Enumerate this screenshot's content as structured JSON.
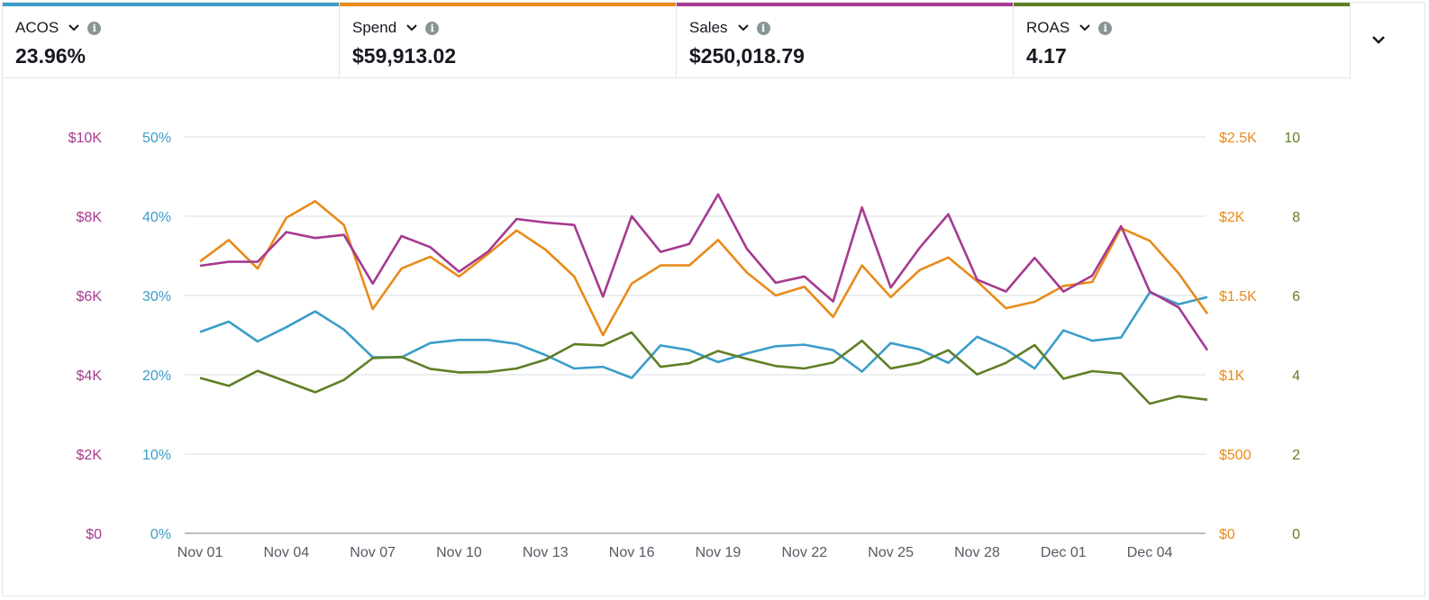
{
  "metrics": [
    {
      "label": "ACOS",
      "value": "23.96%",
      "color": "#3b9dc9"
    },
    {
      "label": "Spend",
      "value": "$59,913.02",
      "color": "#e88b1a"
    },
    {
      "label": "Sales",
      "value": "$250,018.79",
      "color": "#a63a90"
    },
    {
      "label": "ROAS",
      "value": "4.17",
      "color": "#5f7f25"
    }
  ],
  "chart_data": {
    "type": "line",
    "x": [
      "Nov 01",
      "Nov 02",
      "Nov 03",
      "Nov 04",
      "Nov 05",
      "Nov 06",
      "Nov 07",
      "Nov 08",
      "Nov 09",
      "Nov 10",
      "Nov 11",
      "Nov 12",
      "Nov 13",
      "Nov 14",
      "Nov 15",
      "Nov 16",
      "Nov 17",
      "Nov 18",
      "Nov 19",
      "Nov 20",
      "Nov 21",
      "Nov 22",
      "Nov 23",
      "Nov 24",
      "Nov 25",
      "Nov 26",
      "Nov 27",
      "Nov 28",
      "Nov 29",
      "Nov 30",
      "Dec 01",
      "Dec 02",
      "Dec 03",
      "Dec 04",
      "Dec 05",
      "Dec 06"
    ],
    "x_tick_labels": [
      "Nov 01",
      "Nov 04",
      "Nov 07",
      "Nov 10",
      "Nov 13",
      "Nov 16",
      "Nov 19",
      "Nov 22",
      "Nov 25",
      "Nov 28",
      "Dec 01",
      "Dec 04"
    ],
    "grid": true,
    "axes": {
      "sales": {
        "side": "left-outer",
        "range": [
          0,
          10000
        ],
        "ticks": [
          "$0",
          "$2K",
          "$4K",
          "$6K",
          "$8K",
          "$10K"
        ],
        "color": "#a63a90"
      },
      "acos": {
        "side": "left-inner",
        "range": [
          0,
          50
        ],
        "ticks": [
          "0%",
          "10%",
          "20%",
          "30%",
          "40%",
          "50%"
        ],
        "color": "#3b9dc9"
      },
      "spend": {
        "side": "right-inner",
        "range": [
          0,
          2500
        ],
        "ticks": [
          "$0",
          "$500",
          "$1K",
          "$1.5K",
          "$2K",
          "$2.5K"
        ],
        "color": "#e88b1a"
      },
      "roas": {
        "side": "right-outer",
        "range": [
          0,
          10
        ],
        "ticks": [
          "0",
          "2",
          "4",
          "6",
          "8",
          "10"
        ],
        "color": "#5f7f25"
      }
    },
    "series": [
      {
        "name": "ACOS",
        "axis": "acos",
        "color": "#3b9dc9",
        "values": [
          25.4,
          26.7,
          24.2,
          26.0,
          28.0,
          25.7,
          22.2,
          22.2,
          24.0,
          24.4,
          24.4,
          23.9,
          22.5,
          20.8,
          21.0,
          19.6,
          23.7,
          23.1,
          21.6,
          22.7,
          23.6,
          23.8,
          23.1,
          20.4,
          24.0,
          23.2,
          21.5,
          24.8,
          23.2,
          20.8,
          25.6,
          24.3,
          24.7,
          30.4,
          28.9,
          29.8
        ]
      },
      {
        "name": "Spend",
        "axis": "spend",
        "color": "#e88b1a",
        "values": [
          1715,
          1850,
          1670,
          1990,
          2095,
          1945,
          1415,
          1670,
          1745,
          1620,
          1760,
          1910,
          1790,
          1620,
          1250,
          1575,
          1690,
          1690,
          1850,
          1645,
          1500,
          1555,
          1365,
          1690,
          1490,
          1660,
          1740,
          1590,
          1420,
          1460,
          1560,
          1585,
          1925,
          1845,
          1640,
          1385
        ]
      },
      {
        "name": "Sales",
        "axis": "sales",
        "color": "#a63a90",
        "values": [
          6750,
          6850,
          6850,
          7600,
          7450,
          7530,
          6300,
          7500,
          7220,
          6600,
          7100,
          7930,
          7840,
          7780,
          5970,
          8000,
          7100,
          7300,
          8550,
          7180,
          6320,
          6480,
          5850,
          8220,
          6200,
          7200,
          8050,
          6400,
          6100,
          6950,
          6100,
          6500,
          7750,
          6100,
          5700,
          4620
        ]
      },
      {
        "name": "ROAS",
        "axis": "roas",
        "color": "#5f7f25",
        "values": [
          3.92,
          3.72,
          4.1,
          3.83,
          3.56,
          3.87,
          4.42,
          4.45,
          4.15,
          4.06,
          4.07,
          4.16,
          4.38,
          4.77,
          4.74,
          5.07,
          4.2,
          4.29,
          4.6,
          4.4,
          4.22,
          4.16,
          4.31,
          4.86,
          4.16,
          4.3,
          4.62,
          4.01,
          4.3,
          4.75,
          3.9,
          4.09,
          4.03,
          3.27,
          3.46,
          3.37
        ]
      }
    ]
  },
  "icons": {
    "metric_dropdown": "chevron-down-icon",
    "metric_info": "info-icon",
    "panel_expand": "chevron-down-icon"
  }
}
